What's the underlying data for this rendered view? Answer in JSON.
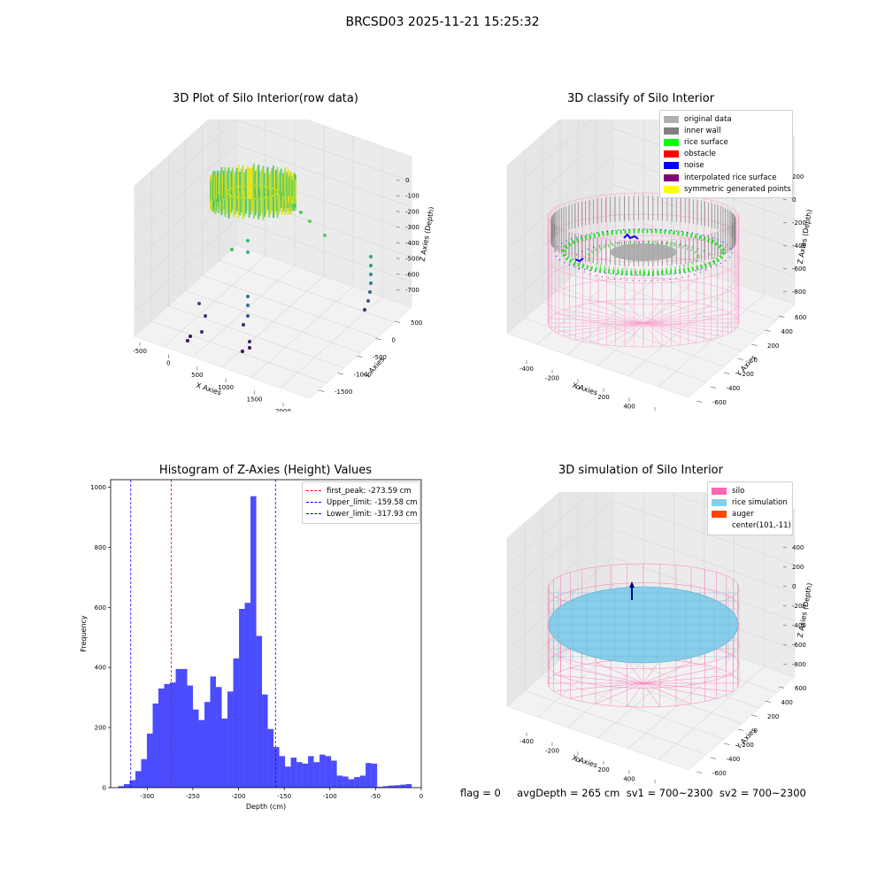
{
  "figure": {
    "suptitle": "BRCSD03 2025-11-21 15:25:32",
    "status_line": "flag = 0     avgDepth = 265 cm  sv1 = 700~2300  sv2 = 700~2300"
  },
  "panels": {
    "raw": {
      "title": "3D Plot of Silo Interior(row data)",
      "xlabel": "X Axies",
      "ylabel": "Y Axies",
      "zlabel": "Z Axies (Depth)",
      "xticks": [
        "-500",
        "0",
        "500",
        "1000",
        "1500",
        "2000"
      ],
      "yticks": [
        "500",
        "0",
        "-500",
        "-1000",
        "-1500"
      ],
      "zticks": [
        "0",
        "-100",
        "-200",
        "-300",
        "-400",
        "-500",
        "-600",
        "-700"
      ]
    },
    "classify": {
      "title": "3D classify of Silo Interior",
      "xlabel": "X Axies",
      "ylabel": "Y Axies",
      "zlabel": "Z Axies (Depth)",
      "xticks": [
        "-400",
        "-200",
        "0",
        "200",
        "400",
        "600"
      ],
      "yticks": [
        "600",
        "400",
        "200",
        "0",
        "-200",
        "-400",
        "-600"
      ],
      "zticks": [
        "200",
        "0",
        "-200",
        "-400",
        "-600",
        "-800"
      ],
      "legend": [
        {
          "label": "original data",
          "color": "#b0b0b0"
        },
        {
          "label": "inner wall",
          "color": "#808080"
        },
        {
          "label": "rice surface",
          "color": "#00ff00"
        },
        {
          "label": "obstacle",
          "color": "#ff0000"
        },
        {
          "label": "noise",
          "color": "#0000ff"
        },
        {
          "label": "interpolated rice surface",
          "color": "#800080"
        },
        {
          "label": "symmetric generated points",
          "color": "#ffff00"
        }
      ]
    },
    "simulation": {
      "title": "3D simulation of Silo Interior",
      "xlabel": "X Axies",
      "ylabel": "Y Axies",
      "zlabel": "Z Axies (Depth)",
      "xticks": [
        "-400",
        "-200",
        "0",
        "200",
        "400",
        "600"
      ],
      "yticks": [
        "600",
        "400",
        "200",
        "0",
        "-200",
        "-400",
        "-600"
      ],
      "zticks": [
        "400",
        "200",
        "0",
        "-200",
        "-400",
        "-600",
        "-800"
      ],
      "legend": [
        {
          "label": "silo",
          "color": "#ff69b4"
        },
        {
          "label": "rice simulation",
          "color": "#87ceeb"
        },
        {
          "label": "auger",
          "color": "#ff4500"
        },
        {
          "label": "center(101,-11)",
          "color": ""
        }
      ]
    }
  },
  "chart_data": {
    "type": "bar",
    "title": "Histogram of Z-Axies (Height) Values",
    "xlabel": "Depth (cm)",
    "ylabel": "Frequency",
    "xlim": [
      -340,
      0
    ],
    "ylim": [
      0,
      1025
    ],
    "xticks": [
      -300,
      -250,
      -200,
      -150,
      -100,
      -50,
      0
    ],
    "yticks": [
      0,
      200,
      400,
      600,
      800,
      1000
    ],
    "bar_color": "#0000ff",
    "bins_x": [
      -331.8,
      -325.5,
      -319.2,
      -312.9,
      -306.6,
      -300.3,
      -294.0,
      -287.7,
      -281.4,
      -275.1,
      -268.8,
      -262.5,
      -256.2,
      -249.9,
      -243.6,
      -237.3,
      -231.0,
      -224.7,
      -218.4,
      -212.1,
      -205.8,
      -199.5,
      -193.2,
      -186.9,
      -180.6,
      -174.3,
      -168.0,
      -161.7,
      -155.4,
      -149.1,
      -142.8,
      -136.5,
      -130.2,
      -123.9,
      -117.6,
      -111.3,
      -105.0,
      -98.7,
      -92.4,
      -86.1,
      -79.8,
      -73.5,
      -67.2,
      -60.9,
      -54.6,
      -48.3,
      -42.0,
      -35.7,
      -29.4,
      -23.1,
      -16.8,
      -10.5
    ],
    "bin_width": 6.3,
    "values": [
      5,
      12,
      25,
      55,
      95,
      180,
      280,
      330,
      345,
      350,
      395,
      395,
      340,
      260,
      225,
      285,
      370,
      335,
      230,
      320,
      430,
      595,
      615,
      970,
      505,
      310,
      195,
      135,
      105,
      70,
      100,
      85,
      80,
      105,
      85,
      110,
      105,
      90,
      40,
      37,
      28,
      35,
      40,
      82,
      80,
      3,
      5,
      7,
      8,
      10,
      12,
      0
    ],
    "vlines": [
      {
        "label": "first_peak: -273.59 cm",
        "x": -273.59,
        "color": "#ff0000"
      },
      {
        "label": "Upper_limit: -159.58 cm",
        "x": -159.58,
        "color": "#0000ff"
      },
      {
        "label": "Lower_limit: -317.93 cm",
        "x": -317.93,
        "color": "#0000ff"
      }
    ],
    "legend_position": "upper-right"
  }
}
